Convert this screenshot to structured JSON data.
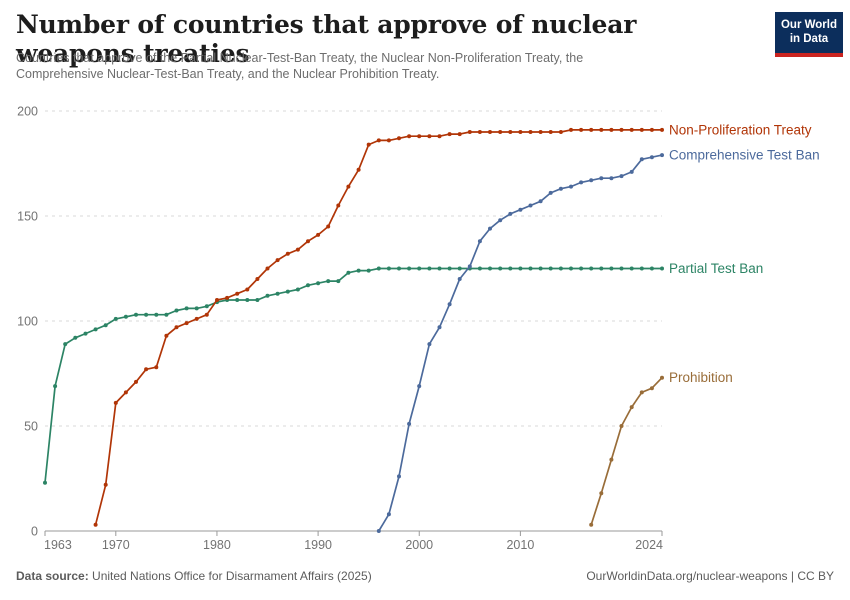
{
  "header": {
    "title": "Number of countries that approve of nuclear weapons treaties",
    "subtitle_lines": [
      "Countries that approve of the Partial Nuclear-Test-Ban Treaty, the Nuclear Non-Proliferation Treaty, the",
      "Comprehensive Nuclear-Test-Ban Treaty, and the Nuclear Prohibition Treaty."
    ],
    "logo": {
      "line1": "Our World",
      "line2": "in Data",
      "bg_color": "#0c2e5c",
      "bar_color": "#cb2420"
    }
  },
  "footer": {
    "datasource_label": "Data source:",
    "datasource_value": " United Nations Office for Disarmament Affairs (2025)",
    "attribution": "OurWorldinData.org/nuclear-weapons | CC BY"
  },
  "chart_data": {
    "type": "line",
    "title": "Number of countries that approve of nuclear weapons treaties",
    "xlabel": "",
    "ylabel": "",
    "xlim": [
      1963,
      2024
    ],
    "ylim": [
      0,
      200
    ],
    "grid": "horizontal-dashed",
    "legend_position": "right of line ends",
    "x_ticks": [
      1963,
      1970,
      1980,
      1990,
      2000,
      2010,
      2024
    ],
    "y_ticks": [
      0,
      50,
      100,
      150,
      200
    ],
    "series": [
      {
        "name": "Non-Proliferation Treaty",
        "color": "#b13507",
        "points": [
          [
            1968,
            3
          ],
          [
            1969,
            22
          ],
          [
            1970,
            61
          ],
          [
            1971,
            66
          ],
          [
            1972,
            71
          ],
          [
            1973,
            77
          ],
          [
            1974,
            78
          ],
          [
            1975,
            93
          ],
          [
            1976,
            97
          ],
          [
            1977,
            99
          ],
          [
            1978,
            101
          ],
          [
            1979,
            103
          ],
          [
            1980,
            110
          ],
          [
            1981,
            111
          ],
          [
            1982,
            113
          ],
          [
            1983,
            115
          ],
          [
            1984,
            120
          ],
          [
            1985,
            125
          ],
          [
            1986,
            129
          ],
          [
            1987,
            132
          ],
          [
            1988,
            134
          ],
          [
            1989,
            138
          ],
          [
            1990,
            141
          ],
          [
            1991,
            145
          ],
          [
            1992,
            155
          ],
          [
            1993,
            164
          ],
          [
            1994,
            172
          ],
          [
            1995,
            184
          ],
          [
            1996,
            186
          ],
          [
            1997,
            186
          ],
          [
            1998,
            187
          ],
          [
            1999,
            188
          ],
          [
            2000,
            188
          ],
          [
            2001,
            188
          ],
          [
            2002,
            188
          ],
          [
            2003,
            189
          ],
          [
            2004,
            189
          ],
          [
            2005,
            190
          ],
          [
            2006,
            190
          ],
          [
            2007,
            190
          ],
          [
            2008,
            190
          ],
          [
            2009,
            190
          ],
          [
            2010,
            190
          ],
          [
            2011,
            190
          ],
          [
            2012,
            190
          ],
          [
            2013,
            190
          ],
          [
            2014,
            190
          ],
          [
            2015,
            191
          ],
          [
            2016,
            191
          ],
          [
            2017,
            191
          ],
          [
            2018,
            191
          ],
          [
            2019,
            191
          ],
          [
            2020,
            191
          ],
          [
            2021,
            191
          ],
          [
            2022,
            191
          ],
          [
            2023,
            191
          ],
          [
            2024,
            191
          ]
        ]
      },
      {
        "name": "Comprehensive Test Ban",
        "color": "#4c6a9c",
        "points": [
          [
            1996,
            0
          ],
          [
            1997,
            8
          ],
          [
            1998,
            26
          ],
          [
            1999,
            51
          ],
          [
            2000,
            69
          ],
          [
            2001,
            89
          ],
          [
            2002,
            97
          ],
          [
            2003,
            108
          ],
          [
            2004,
            120
          ],
          [
            2005,
            126
          ],
          [
            2006,
            138
          ],
          [
            2007,
            144
          ],
          [
            2008,
            148
          ],
          [
            2009,
            151
          ],
          [
            2010,
            153
          ],
          [
            2011,
            155
          ],
          [
            2012,
            157
          ],
          [
            2013,
            161
          ],
          [
            2014,
            163
          ],
          [
            2015,
            164
          ],
          [
            2016,
            166
          ],
          [
            2017,
            167
          ],
          [
            2018,
            168
          ],
          [
            2019,
            168
          ],
          [
            2020,
            169
          ],
          [
            2021,
            171
          ],
          [
            2022,
            177
          ],
          [
            2023,
            178
          ],
          [
            2024,
            179
          ]
        ]
      },
      {
        "name": "Partial Test Ban",
        "color": "#2c8465",
        "points": [
          [
            1963,
            23
          ],
          [
            1964,
            69
          ],
          [
            1965,
            89
          ],
          [
            1966,
            92
          ],
          [
            1967,
            94
          ],
          [
            1968,
            96
          ],
          [
            1969,
            98
          ],
          [
            1970,
            101
          ],
          [
            1971,
            102
          ],
          [
            1972,
            103
          ],
          [
            1973,
            103
          ],
          [
            1974,
            103
          ],
          [
            1975,
            103
          ],
          [
            1976,
            105
          ],
          [
            1977,
            106
          ],
          [
            1978,
            106
          ],
          [
            1979,
            107
          ],
          [
            1980,
            109
          ],
          [
            1981,
            110
          ],
          [
            1982,
            110
          ],
          [
            1983,
            110
          ],
          [
            1984,
            110
          ],
          [
            1985,
            112
          ],
          [
            1986,
            113
          ],
          [
            1987,
            114
          ],
          [
            1988,
            115
          ],
          [
            1989,
            117
          ],
          [
            1990,
            118
          ],
          [
            1991,
            119
          ],
          [
            1992,
            119
          ],
          [
            1993,
            123
          ],
          [
            1994,
            124
          ],
          [
            1995,
            124
          ],
          [
            1996,
            125
          ],
          [
            1997,
            125
          ],
          [
            1998,
            125
          ],
          [
            1999,
            125
          ],
          [
            2000,
            125
          ],
          [
            2001,
            125
          ],
          [
            2002,
            125
          ],
          [
            2003,
            125
          ],
          [
            2004,
            125
          ],
          [
            2005,
            125
          ],
          [
            2006,
            125
          ],
          [
            2007,
            125
          ],
          [
            2008,
            125
          ],
          [
            2009,
            125
          ],
          [
            2010,
            125
          ],
          [
            2011,
            125
          ],
          [
            2012,
            125
          ],
          [
            2013,
            125
          ],
          [
            2014,
            125
          ],
          [
            2015,
            125
          ],
          [
            2016,
            125
          ],
          [
            2017,
            125
          ],
          [
            2018,
            125
          ],
          [
            2019,
            125
          ],
          [
            2020,
            125
          ],
          [
            2021,
            125
          ],
          [
            2022,
            125
          ],
          [
            2023,
            125
          ],
          [
            2024,
            125
          ]
        ]
      },
      {
        "name": "Prohibition",
        "color": "#996d39",
        "points": [
          [
            2017,
            3
          ],
          [
            2018,
            18
          ],
          [
            2019,
            34
          ],
          [
            2020,
            50
          ],
          [
            2021,
            59
          ],
          [
            2022,
            66
          ],
          [
            2023,
            68
          ],
          [
            2024,
            73
          ]
        ]
      }
    ]
  }
}
